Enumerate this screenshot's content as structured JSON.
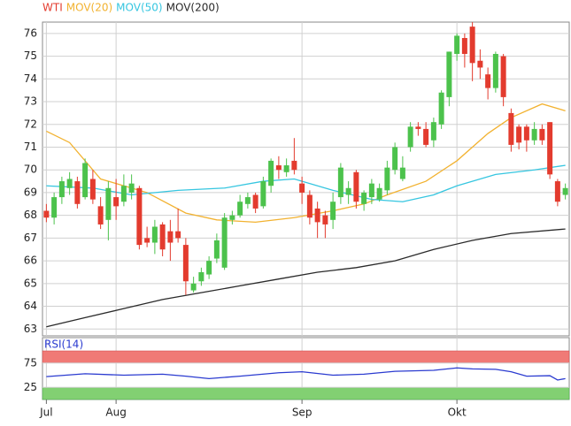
{
  "chart_data": [
    {
      "type": "candlestick",
      "categories": [
        "Jul",
        null,
        null,
        null,
        null,
        null,
        null,
        null,
        null,
        "Aug",
        null,
        null,
        null,
        null,
        null,
        null,
        null,
        null,
        null,
        null,
        null,
        null,
        null,
        null,
        null,
        null,
        null,
        null,
        null,
        null,
        null,
        null,
        null,
        "Sep",
        null,
        null,
        null,
        null,
        null,
        null,
        null,
        null,
        null,
        null,
        null,
        null,
        null,
        null,
        null,
        null,
        null,
        null,
        null,
        "Okt",
        null,
        null,
        null,
        null,
        null,
        null,
        null,
        null,
        null,
        null,
        null,
        null,
        null,
        null
      ],
      "series": [
        {
          "name": "WTI",
          "color": "#e33b2e",
          "up_color": "#4cc24c",
          "open": [
            68.2,
            67.9,
            68.8,
            69.2,
            69.5,
            68.8,
            69.6,
            68.4,
            67.8,
            68.8,
            68.6,
            69.0,
            69.2,
            67.0,
            66.8,
            67.6,
            67.3,
            67.3,
            66.7,
            64.7,
            65.1,
            65.4,
            66.1,
            65.7,
            67.8,
            68.0,
            68.5,
            68.9,
            68.4,
            69.3,
            70.2,
            69.9,
            70.4,
            69.4,
            68.9,
            68.3,
            68.0,
            67.8,
            68.8,
            68.9,
            69.9,
            68.5,
            68.8,
            68.7,
            69.1,
            70.0,
            69.6,
            71.0,
            71.9,
            71.8,
            71.3,
            72.0,
            73.2,
            75.1,
            75.8,
            76.3,
            74.8,
            74.2,
            73.6,
            75.0,
            72.5,
            71.9,
            71.9,
            71.3,
            71.8,
            72.1,
            69.5,
            68.9
          ],
          "high": [
            68.5,
            69.0,
            69.7,
            69.9,
            69.7,
            70.5,
            70.0,
            68.8,
            69.5,
            69.6,
            69.8,
            69.8,
            69.3,
            67.5,
            67.8,
            67.7,
            67.8,
            68.3,
            67.0,
            65.3,
            65.7,
            66.2,
            67.2,
            68.1,
            68.2,
            68.9,
            69.0,
            69.0,
            69.7,
            70.5,
            70.6,
            70.5,
            71.4,
            69.7,
            69.1,
            68.6,
            68.2,
            69.0,
            70.3,
            69.5,
            70.0,
            69.1,
            69.6,
            69.4,
            70.4,
            71.2,
            70.6,
            72.1,
            72.1,
            72.1,
            72.3,
            73.5,
            75.2,
            76.0,
            76.0,
            76.5,
            75.3,
            74.5,
            75.2,
            75.1,
            72.7,
            72.0,
            72.0,
            72.1,
            72.0,
            72.1,
            69.6,
            69.4
          ],
          "low": [
            67.7,
            67.6,
            68.5,
            68.9,
            68.3,
            68.7,
            68.5,
            67.4,
            66.9,
            67.8,
            68.4,
            68.7,
            66.5,
            66.6,
            66.3,
            66.2,
            66.0,
            66.8,
            64.5,
            64.6,
            64.9,
            65.2,
            65.9,
            65.6,
            67.6,
            67.9,
            68.3,
            68.1,
            68.3,
            69.0,
            69.6,
            69.7,
            69.8,
            68.5,
            67.6,
            67.0,
            67.0,
            67.4,
            68.5,
            68.5,
            68.3,
            68.2,
            68.5,
            68.6,
            68.9,
            69.8,
            69.5,
            70.8,
            71.5,
            71.0,
            71.0,
            71.8,
            72.8,
            74.8,
            74.5,
            73.9,
            74.0,
            73.1,
            73.4,
            72.8,
            70.8,
            70.9,
            70.8,
            71.1,
            71.1,
            69.6,
            68.4,
            68.7
          ],
          "close": [
            67.9,
            68.8,
            69.5,
            69.6,
            68.5,
            70.3,
            68.7,
            67.6,
            69.2,
            68.4,
            69.3,
            69.4,
            66.7,
            66.8,
            67.5,
            66.5,
            66.8,
            67.0,
            65.1,
            65.0,
            65.5,
            66.0,
            66.9,
            67.9,
            68.0,
            68.6,
            68.8,
            68.3,
            69.5,
            70.4,
            70.0,
            70.2,
            70.0,
            69.0,
            67.9,
            67.7,
            67.6,
            68.6,
            70.1,
            69.2,
            68.6,
            69.0,
            69.4,
            69.2,
            70.1,
            71.0,
            70.1,
            71.9,
            71.8,
            71.1,
            72.1,
            73.4,
            75.2,
            75.9,
            75.1,
            74.7,
            74.5,
            73.6,
            75.1,
            73.2,
            71.1,
            71.2,
            71.3,
            71.8,
            71.3,
            69.8,
            68.6,
            69.2
          ]
        }
      ],
      "overlays": [
        {
          "name": "MOV(20)",
          "color": "#f2b230",
          "x": [
            0,
            3,
            7,
            13,
            18,
            22,
            27,
            32,
            37,
            41,
            44,
            49,
            53,
            57,
            60,
            64,
            67
          ],
          "values": [
            71.7,
            71.2,
            69.6,
            69.0,
            68.1,
            67.8,
            67.7,
            67.9,
            68.2,
            68.5,
            68.9,
            69.5,
            70.4,
            71.6,
            72.3,
            72.9,
            72.6
          ]
        },
        {
          "name": "MOV(50)",
          "color": "#36c6e0",
          "x": [
            0,
            6,
            11,
            17,
            23,
            28,
            32,
            37,
            42,
            46,
            50,
            53,
            58,
            63,
            67
          ],
          "values": [
            69.3,
            69.2,
            68.9,
            69.1,
            69.2,
            69.5,
            69.6,
            69.1,
            68.7,
            68.6,
            68.9,
            69.3,
            69.8,
            70.0,
            70.2
          ]
        },
        {
          "name": "MOV(200)",
          "color": "#2a2a2a",
          "x": [
            0,
            5,
            10,
            15,
            20,
            25,
            30,
            35,
            40,
            45,
            50,
            55,
            60,
            67
          ],
          "values": [
            63.1,
            63.5,
            63.9,
            64.3,
            64.6,
            64.9,
            65.2,
            65.5,
            65.7,
            66.0,
            66.5,
            66.9,
            67.2,
            67.4
          ]
        }
      ],
      "xlim": [
        -0.5,
        67.5
      ],
      "ylim": [
        62.7,
        76.5
      ],
      "yticks": [
        63,
        64,
        65,
        66,
        67,
        68,
        69,
        70,
        71,
        72,
        73,
        74,
        75,
        76
      ],
      "grid": true
    },
    {
      "type": "line",
      "series": [
        {
          "name": "RSI(14)",
          "color": "#2b3bd0",
          "x": [
            0,
            5,
            10,
            15,
            18,
            21,
            25,
            30,
            33,
            37,
            41,
            45,
            50,
            53,
            55,
            58,
            60,
            62,
            65,
            66,
            67
          ],
          "values": [
            47,
            53,
            50,
            52,
            48,
            43,
            48,
            55,
            57,
            50,
            52,
            58,
            60,
            65,
            63,
            62,
            57,
            48,
            49,
            40,
            43
          ]
        }
      ],
      "xlim": [
        -0.5,
        67.5
      ],
      "ylim": [
        0,
        100
      ],
      "yticks": [
        25,
        75
      ],
      "band_colors": [
        "#f07a76",
        "#82d072"
      ],
      "grid": true
    }
  ]
}
